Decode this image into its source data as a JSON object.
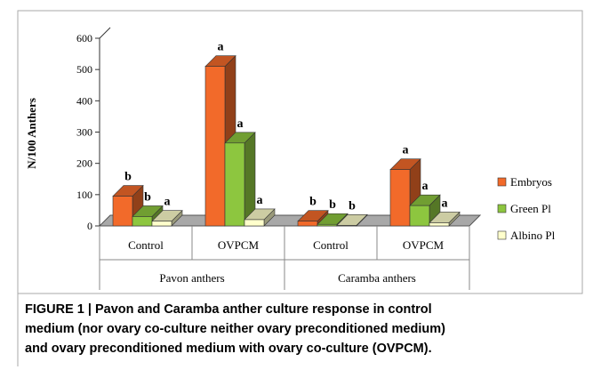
{
  "chart_data": {
    "type": "bar3d",
    "y_label": "N/100 Anthers",
    "categories": [
      "Control",
      "OVPCM",
      "Control",
      "OVPCM"
    ],
    "groups": [
      "Pavon anthers",
      "Caramba anthers"
    ],
    "ylim": [
      0,
      600
    ],
    "yticks": [
      0,
      100,
      200,
      300,
      400,
      500,
      600
    ],
    "legend": "right",
    "series": [
      {
        "name": "Embryos",
        "color": "#f26a2a",
        "values": [
          95,
          510,
          15,
          180
        ],
        "letters": [
          "b",
          "a",
          "b",
          "a"
        ]
      },
      {
        "name": "Green Pl",
        "color": "#8dc63f",
        "values": [
          30,
          265,
          5,
          65
        ],
        "letters": [
          "b",
          "a",
          "b",
          "a"
        ]
      },
      {
        "name": "Albino Pl",
        "color": "#ffffcc",
        "values": [
          15,
          20,
          2,
          10
        ],
        "letters": [
          "a",
          "a",
          "b",
          "a"
        ]
      }
    ]
  },
  "caption": [
    "FIGURE 1 | Pavon and Caramba anther culture response in control",
    "medium (nor ovary co-culture neither ovary preconditioned medium)",
    "and ovary preconditioned medium with ovary co-culture (OVPCM)."
  ]
}
